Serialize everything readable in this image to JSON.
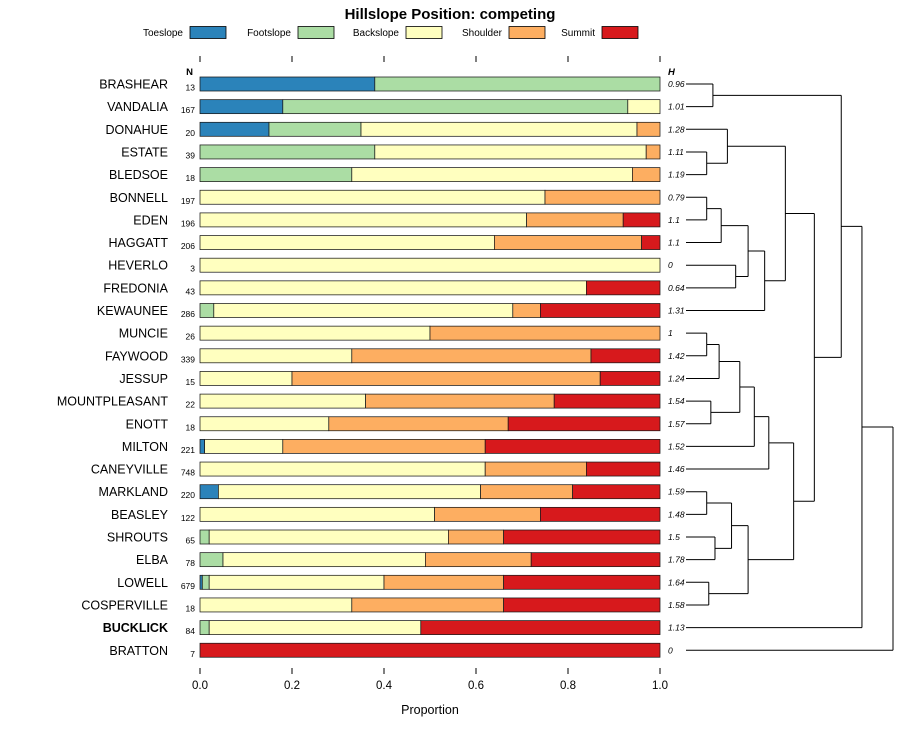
{
  "chart_data": {
    "type": "bar",
    "orientation": "horizontal-stacked",
    "title": "Hillslope Position: competing",
    "xlabel": "Proportion",
    "xlim": [
      0,
      1
    ],
    "x_ticks": [
      0.0,
      0.2,
      0.4,
      0.6,
      0.8,
      1.0
    ],
    "x_tick_labels": [
      "0.0",
      "0.2",
      "0.4",
      "0.6",
      "0.8",
      "1.0"
    ],
    "grid": false,
    "legend_position": "top",
    "legend": [
      {
        "label": "Toeslope",
        "color": "#2B83BA"
      },
      {
        "label": "Footslope",
        "color": "#ABDDA4"
      },
      {
        "label": "Backslope",
        "color": "#FFFFBF"
      },
      {
        "label": "Shoulder",
        "color": "#FDAE61"
      },
      {
        "label": "Summit",
        "color": "#D7191C"
      }
    ],
    "n_header": "N",
    "h_header": "H",
    "rows": [
      {
        "name": "BRASHEAR",
        "n": 13,
        "h": "0.96",
        "bold": false,
        "values": [
          0.38,
          0.62,
          0,
          0,
          0
        ]
      },
      {
        "name": "VANDALIA",
        "n": 167,
        "h": "1.01",
        "bold": false,
        "values": [
          0.18,
          0.75,
          0.07,
          0,
          0
        ]
      },
      {
        "name": "DONAHUE",
        "n": 20,
        "h": "1.28",
        "bold": false,
        "values": [
          0.15,
          0.2,
          0.6,
          0.05,
          0
        ]
      },
      {
        "name": "ESTATE",
        "n": 39,
        "h": "1.11",
        "bold": false,
        "values": [
          0,
          0.38,
          0.59,
          0.03,
          0
        ]
      },
      {
        "name": "BLEDSOE",
        "n": 18,
        "h": "1.19",
        "bold": false,
        "values": [
          0,
          0.33,
          0.61,
          0.06,
          0
        ]
      },
      {
        "name": "BONNELL",
        "n": 197,
        "h": "0.79",
        "bold": false,
        "values": [
          0,
          0,
          0.75,
          0.25,
          0
        ]
      },
      {
        "name": "EDEN",
        "n": 196,
        "h": "1.1",
        "bold": false,
        "values": [
          0,
          0,
          0.71,
          0.21,
          0.08
        ]
      },
      {
        "name": "HAGGATT",
        "n": 206,
        "h": "1.1",
        "bold": false,
        "values": [
          0,
          0,
          0.64,
          0.32,
          0.04
        ]
      },
      {
        "name": "HEVERLO",
        "n": 3,
        "h": "0",
        "bold": false,
        "values": [
          0,
          0,
          1.0,
          0,
          0
        ]
      },
      {
        "name": "FREDONIA",
        "n": 43,
        "h": "0.64",
        "bold": false,
        "values": [
          0,
          0,
          0.84,
          0,
          0.16
        ]
      },
      {
        "name": "KEWAUNEE",
        "n": 286,
        "h": "1.31",
        "bold": false,
        "values": [
          0,
          0.03,
          0.65,
          0.06,
          0.26
        ]
      },
      {
        "name": "MUNCIE",
        "n": 26,
        "h": "1",
        "bold": false,
        "values": [
          0,
          0,
          0.5,
          0.5,
          0
        ]
      },
      {
        "name": "FAYWOOD",
        "n": 339,
        "h": "1.42",
        "bold": false,
        "values": [
          0,
          0,
          0.33,
          0.52,
          0.15
        ]
      },
      {
        "name": "JESSUP",
        "n": 15,
        "h": "1.24",
        "bold": false,
        "values": [
          0,
          0,
          0.2,
          0.67,
          0.13
        ]
      },
      {
        "name": "MOUNTPLEASANT",
        "n": 22,
        "h": "1.54",
        "bold": false,
        "values": [
          0,
          0,
          0.36,
          0.41,
          0.23
        ]
      },
      {
        "name": "ENOTT",
        "n": 18,
        "h": "1.57",
        "bold": false,
        "values": [
          0,
          0,
          0.28,
          0.39,
          0.33
        ]
      },
      {
        "name": "MILTON",
        "n": 221,
        "h": "1.52",
        "bold": false,
        "values": [
          0.01,
          0,
          0.17,
          0.44,
          0.38
        ]
      },
      {
        "name": "CANEYVILLE",
        "n": 748,
        "h": "1.46",
        "bold": false,
        "values": [
          0,
          0,
          0.62,
          0.22,
          0.16
        ]
      },
      {
        "name": "MARKLAND",
        "n": 220,
        "h": "1.59",
        "bold": false,
        "values": [
          0.04,
          0,
          0.57,
          0.2,
          0.19
        ]
      },
      {
        "name": "BEASLEY",
        "n": 122,
        "h": "1.48",
        "bold": false,
        "values": [
          0,
          0,
          0.51,
          0.23,
          0.26
        ]
      },
      {
        "name": "SHROUTS",
        "n": 65,
        "h": "1.5",
        "bold": false,
        "values": [
          0,
          0.02,
          0.52,
          0.12,
          0.34
        ]
      },
      {
        "name": "ELBA",
        "n": 78,
        "h": "1.78",
        "bold": false,
        "values": [
          0,
          0.05,
          0.44,
          0.23,
          0.28
        ]
      },
      {
        "name": "LOWELL",
        "n": 679,
        "h": "1.64",
        "bold": false,
        "values": [
          0.005,
          0.015,
          0.38,
          0.26,
          0.34
        ]
      },
      {
        "name": "COSPERVILLE",
        "n": 18,
        "h": "1.58",
        "bold": false,
        "values": [
          0,
          0,
          0.33,
          0.33,
          0.34
        ]
      },
      {
        "name": "BUCKLICK",
        "n": 84,
        "h": "1.13",
        "bold": true,
        "values": [
          0,
          0.02,
          0.46,
          0,
          0.52
        ]
      },
      {
        "name": "BRATTON",
        "n": 7,
        "h": "0",
        "bold": false,
        "values": [
          0,
          0,
          0,
          0,
          1.0
        ]
      }
    ],
    "dendrogram_merges": [
      [
        -4,
        -5,
        0.1
      ],
      [
        -6,
        -7,
        0.1
      ],
      [
        -1,
        -2,
        0.13
      ],
      [
        -12,
        -13,
        0.1
      ],
      [
        -19,
        -20,
        0.1
      ],
      [
        -23,
        -24,
        0.11
      ],
      [
        -15,
        -16,
        0.12
      ],
      [
        -3,
        1,
        0.2
      ],
      [
        2,
        -8,
        0.17
      ],
      [
        4,
        -14,
        0.16
      ],
      [
        -9,
        -10,
        0.24
      ],
      [
        -21,
        -22,
        0.14
      ],
      [
        9,
        11,
        0.3
      ],
      [
        13,
        -11,
        0.38
      ],
      [
        10,
        7,
        0.26
      ],
      [
        15,
        -17,
        0.33
      ],
      [
        16,
        -18,
        0.4
      ],
      [
        5,
        12,
        0.22
      ],
      [
        18,
        6,
        0.3
      ],
      [
        8,
        14,
        0.48
      ],
      [
        17,
        19,
        0.52
      ],
      [
        20,
        21,
        0.62
      ],
      [
        3,
        22,
        0.75
      ],
      [
        23,
        -25,
        0.85
      ],
      [
        24,
        -26,
        1.0
      ]
    ]
  }
}
